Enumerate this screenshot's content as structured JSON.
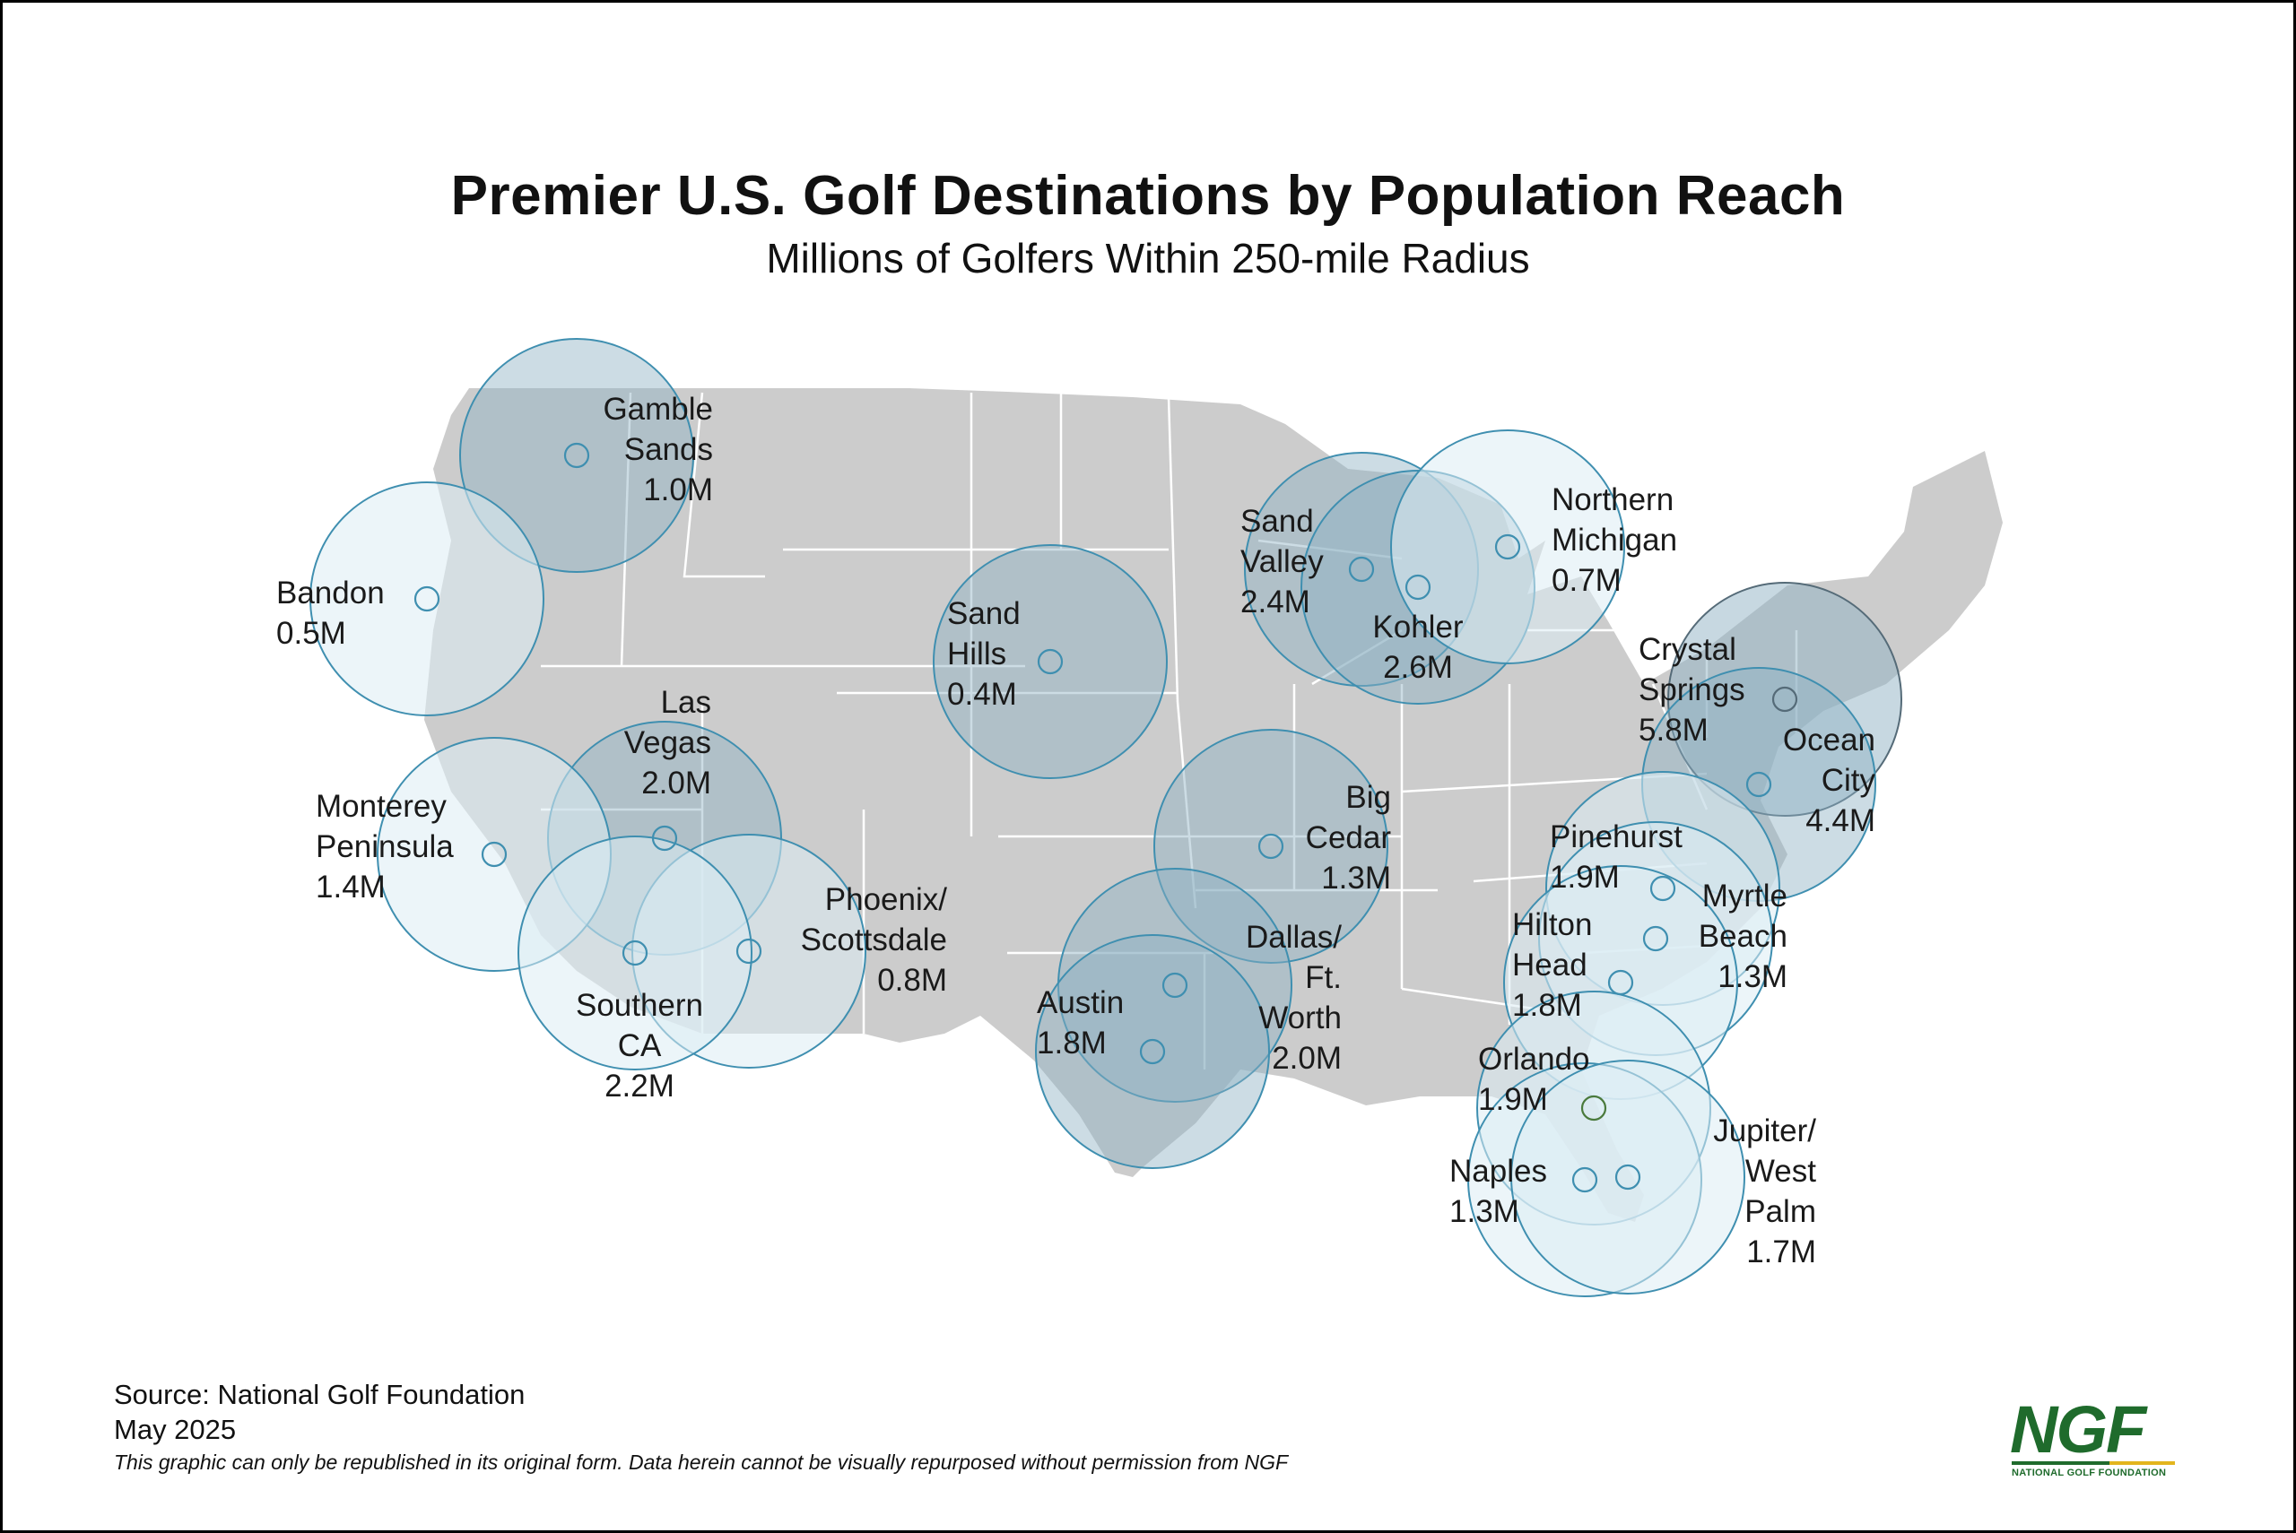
{
  "title": "Premier U.S. Golf Destinations by Population Reach",
  "subtitle": "Millions of Golfers Within 250-mile Radius",
  "footer": {
    "source": "Source: National Golf Foundation",
    "date": "May 2025",
    "note": "This graphic can only be republished in its original form. Data herein cannot be visually repurposed without permission from NGF"
  },
  "logo": {
    "mark": "NGF",
    "text": "NATIONAL GOLF FOUNDATION"
  },
  "colors": {
    "land": "#cccccc",
    "state_border": "#ffffff",
    "circle_stroke": "#3f8fb0",
    "circle_fill_light": "#dcedf4",
    "circle_fill_overlap": "#8fb1c4",
    "circle_stroke_dark": "#556b78",
    "marker_green": "#4a7a3c"
  },
  "destinations": [
    {
      "id": "gamble-sands",
      "name": "Gamble Sands",
      "value": "1.0M"
    },
    {
      "id": "bandon",
      "name": "Bandon",
      "value": "0.5M"
    },
    {
      "id": "sand-hills",
      "name": "Sand Hills",
      "value": "0.4M"
    },
    {
      "id": "sand-valley",
      "name": "Sand Valley",
      "value": "2.4M"
    },
    {
      "id": "kohler",
      "name": "Kohler",
      "value": "2.6M"
    },
    {
      "id": "northern-michigan",
      "name": "Northern Michigan",
      "value": "0.7M"
    },
    {
      "id": "crystal-springs",
      "name": "Crystal Springs",
      "value": "5.8M"
    },
    {
      "id": "ocean-city",
      "name": "Ocean City",
      "value": "4.4M"
    },
    {
      "id": "las-vegas",
      "name": "Las Vegas",
      "value": "2.0M"
    },
    {
      "id": "monterey-peninsula",
      "name": "Monterey Peninsula",
      "value": "1.4M"
    },
    {
      "id": "phoenix-scottsdale",
      "name": "Phoenix/ Scottsdale",
      "value": "0.8M"
    },
    {
      "id": "southern-ca",
      "name": "Southern CA",
      "value": "2.2M"
    },
    {
      "id": "big-cedar",
      "name": "Big Cedar",
      "value": "1.3M"
    },
    {
      "id": "dallas-ft-worth",
      "name": "Dallas/ Ft. Worth",
      "value": "2.0M"
    },
    {
      "id": "austin",
      "name": "Austin",
      "value": "1.8M"
    },
    {
      "id": "pinehurst",
      "name": "Pinehurst",
      "value": "1.9M"
    },
    {
      "id": "myrtle-beach",
      "name": "Myrtle Beach",
      "value": "1.3M"
    },
    {
      "id": "hilton-head",
      "name": "Hilton Head",
      "value": "1.8M"
    },
    {
      "id": "orlando",
      "name": "Orlando",
      "value": "1.9M"
    },
    {
      "id": "naples",
      "name": "Naples",
      "value": "1.3M"
    },
    {
      "id": "jupiter-west-palm",
      "name": "Jupiter/ West Palm",
      "value": "1.7M"
    }
  ]
}
